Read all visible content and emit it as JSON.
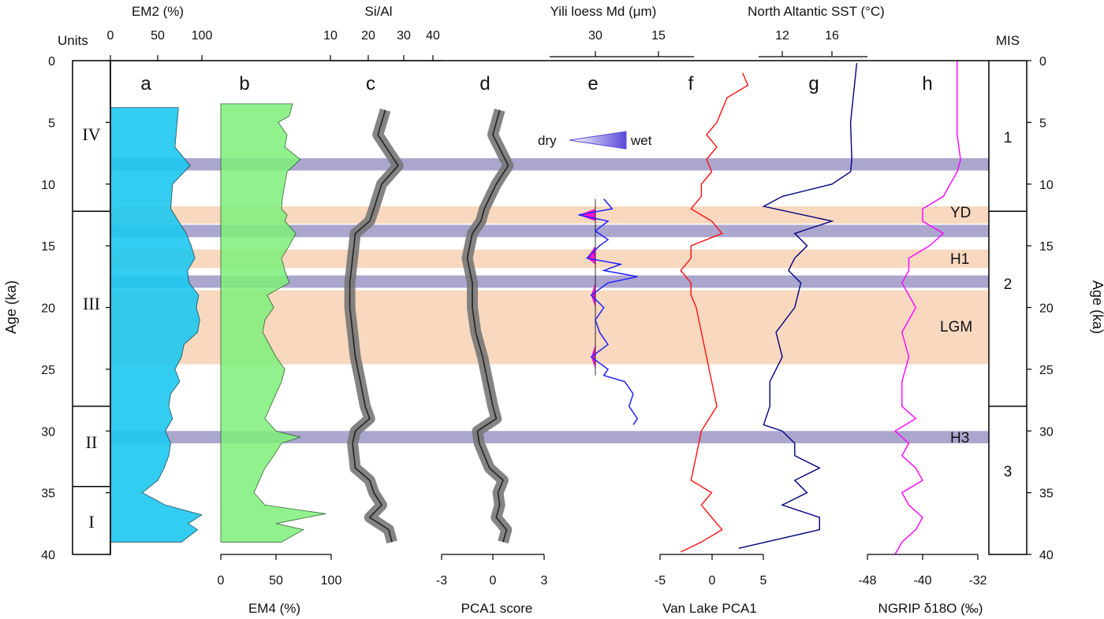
{
  "chart_data": {
    "type": "line",
    "title": "",
    "age_axis": {
      "label": "Age (ka)",
      "range": [
        0,
        40
      ],
      "ticks": [
        0,
        5,
        10,
        15,
        20,
        25,
        30,
        35,
        40
      ],
      "direction": "downward"
    },
    "columns": {
      "units": {
        "header": "Units",
        "items": [
          {
            "label": "IV",
            "range": [
              0,
              12.2
            ]
          },
          {
            "label": "III",
            "range": [
              12.2,
              28
            ]
          },
          {
            "label": "II",
            "range": [
              28,
              34.5
            ]
          },
          {
            "label": "I",
            "range": [
              34.5,
              40
            ]
          }
        ]
      },
      "mis": {
        "header": "MIS",
        "items": [
          {
            "label": "1",
            "range": [
              0,
              12.2
            ]
          },
          {
            "label": "2",
            "range": [
              12.2,
              28
            ]
          },
          {
            "label": "3",
            "range": [
              28,
              40
            ]
          }
        ]
      }
    },
    "bands": {
      "cold": [
        {
          "range": [
            11.8,
            13.2
          ],
          "label": "YD"
        },
        {
          "range": [
            15.3,
            16.8
          ],
          "label": "H1"
        },
        {
          "range": [
            18.6,
            24.6
          ],
          "label": "LGM"
        }
      ],
      "wet": [
        {
          "range": [
            7.9,
            8.9
          ],
          "label": ""
        },
        {
          "range": [
            13.3,
            14.3
          ],
          "label": ""
        },
        {
          "range": [
            17.4,
            18.4
          ],
          "label": ""
        },
        {
          "range": [
            30,
            31
          ],
          "label": "H3"
        }
      ]
    },
    "legend": {
      "dry": "dry",
      "wet": "wet"
    },
    "panels": [
      {
        "id": "a",
        "label": "a",
        "axis_label": "EM2 (%)",
        "axis_position": "top",
        "scale": "log",
        "ticks": [
          "0",
          "50",
          "100"
        ],
        "color": "#1ec8f0",
        "points": [
          [
            3.8,
            30
          ],
          [
            5,
            28
          ],
          [
            7,
            25
          ],
          [
            8.5,
            55
          ],
          [
            10,
            22
          ],
          [
            12,
            20
          ],
          [
            13,
            30
          ],
          [
            14,
            45
          ],
          [
            15,
            58
          ],
          [
            16,
            70
          ],
          [
            17,
            48
          ],
          [
            18,
            52
          ],
          [
            19,
            85
          ],
          [
            20,
            75
          ],
          [
            21,
            90
          ],
          [
            22,
            80
          ],
          [
            23,
            40
          ],
          [
            24,
            35
          ],
          [
            25,
            25
          ],
          [
            26,
            32
          ],
          [
            27,
            20
          ],
          [
            28,
            18
          ],
          [
            29,
            22
          ],
          [
            30,
            15
          ],
          [
            31,
            20
          ],
          [
            32,
            18
          ],
          [
            33,
            14
          ],
          [
            34,
            10
          ],
          [
            35,
            4
          ],
          [
            36,
            15
          ],
          [
            36.8,
            100
          ],
          [
            37.5,
            50
          ],
          [
            38,
            80
          ],
          [
            39,
            35
          ]
        ]
      },
      {
        "id": "b",
        "label": "b",
        "axis_label": "EM4 (%)",
        "axis_position": "bottom",
        "scale": "linear",
        "ticks": [
          "0",
          "50",
          "100"
        ],
        "range": [
          0,
          100
        ],
        "color": "#7ef07a",
        "points": [
          [
            3.5,
            65
          ],
          [
            4.5,
            62
          ],
          [
            5,
            52
          ],
          [
            6,
            60
          ],
          [
            7,
            58
          ],
          [
            8,
            72
          ],
          [
            9,
            60
          ],
          [
            10,
            58
          ],
          [
            11,
            56
          ],
          [
            12,
            55
          ],
          [
            12.5,
            60
          ],
          [
            13,
            58
          ],
          [
            14,
            68
          ],
          [
            15,
            62
          ],
          [
            16,
            55
          ],
          [
            17,
            58
          ],
          [
            18,
            62
          ],
          [
            19,
            42
          ],
          [
            20,
            48
          ],
          [
            21,
            40
          ],
          [
            22,
            38
          ],
          [
            23,
            44
          ],
          [
            24,
            50
          ],
          [
            25,
            58
          ],
          [
            26,
            55
          ],
          [
            27,
            50
          ],
          [
            28,
            45
          ],
          [
            29,
            40
          ],
          [
            30,
            50
          ],
          [
            30.5,
            72
          ],
          [
            31,
            55
          ],
          [
            32,
            48
          ],
          [
            33,
            40
          ],
          [
            34,
            35
          ],
          [
            35,
            30
          ],
          [
            36,
            40
          ],
          [
            36.7,
            95
          ],
          [
            37.5,
            50
          ],
          [
            38,
            75
          ],
          [
            39,
            55
          ]
        ]
      },
      {
        "id": "c",
        "label": "c",
        "axis_label": "Si/Al",
        "axis_position": "top",
        "scale": "log",
        "ticks": [
          "10",
          "20",
          "30",
          "40"
        ],
        "color": "#222222",
        "band_color": "#777777",
        "points": [
          [
            4,
            21
          ],
          [
            6,
            19
          ],
          [
            8.5,
            25
          ],
          [
            10,
            20
          ],
          [
            12,
            18
          ],
          [
            13,
            17
          ],
          [
            14,
            14
          ],
          [
            16,
            13.5
          ],
          [
            18,
            13
          ],
          [
            20,
            13
          ],
          [
            22,
            13.5
          ],
          [
            24,
            14
          ],
          [
            26,
            15
          ],
          [
            28,
            16
          ],
          [
            29,
            17
          ],
          [
            30,
            14
          ],
          [
            31,
            13.5
          ],
          [
            33,
            14
          ],
          [
            34,
            17
          ],
          [
            35,
            18
          ],
          [
            36,
            20
          ],
          [
            37,
            17
          ],
          [
            38,
            22
          ],
          [
            39,
            23
          ]
        ]
      },
      {
        "id": "d",
        "label": "d",
        "axis_label": "PCA1 score",
        "axis_position": "bottom",
        "scale": "linear",
        "ticks": [
          "-3",
          "0",
          "3"
        ],
        "range": [
          -3,
          3
        ],
        "color": "#222222",
        "band_color": "#777777",
        "points": [
          [
            4,
            0.4
          ],
          [
            6,
            0
          ],
          [
            8.5,
            0.9
          ],
          [
            10,
            0.2
          ],
          [
            12,
            -0.5
          ],
          [
            13,
            -0.7
          ],
          [
            14,
            -1.2
          ],
          [
            16,
            -1.5
          ],
          [
            18,
            -1.2
          ],
          [
            20,
            -1.2
          ],
          [
            22,
            -1.0
          ],
          [
            24,
            -0.6
          ],
          [
            26,
            -0.3
          ],
          [
            28,
            0
          ],
          [
            29,
            0.2
          ],
          [
            30,
            -0.9
          ],
          [
            31,
            -0.8
          ],
          [
            33,
            -0.2
          ],
          [
            34,
            0.6
          ],
          [
            35,
            0.3
          ],
          [
            36,
            0.4
          ],
          [
            37,
            0.2
          ],
          [
            38,
            0.8
          ],
          [
            39,
            0.6
          ]
        ]
      },
      {
        "id": "e",
        "label": "e",
        "axis_label": "Yili loess Md (μm)",
        "axis_position": "top",
        "scale": "linear",
        "ticks": [
          "30",
          "15"
        ],
        "range": [
          45,
          10
        ],
        "color": "#2020ff",
        "fill_color": "#ff00cc",
        "points": [
          [
            11.2,
            28
          ],
          [
            12,
            26
          ],
          [
            12.5,
            34
          ],
          [
            13,
            27
          ],
          [
            13.8,
            30
          ],
          [
            14.5,
            27
          ],
          [
            15,
            29
          ],
          [
            16,
            32
          ],
          [
            16.5,
            24
          ],
          [
            17,
            28
          ],
          [
            17.5,
            20
          ],
          [
            18,
            27
          ],
          [
            19,
            31
          ],
          [
            20,
            28
          ],
          [
            21,
            30
          ],
          [
            22,
            29
          ],
          [
            23,
            27
          ],
          [
            24,
            31
          ],
          [
            25,
            27
          ],
          [
            25.5,
            28
          ],
          [
            26,
            23
          ],
          [
            27,
            21
          ],
          [
            28,
            22
          ],
          [
            29,
            20
          ],
          [
            29.5,
            21
          ]
        ]
      },
      {
        "id": "f",
        "label": "f",
        "axis_label": "Van Lake PCA1",
        "axis_position": "bottom",
        "scale": "linear",
        "ticks": [
          "-5",
          "0",
          "5"
        ],
        "range": [
          -5,
          5
        ],
        "color": "#ff1010",
        "points": [
          [
            1,
            3
          ],
          [
            2,
            3.5
          ],
          [
            3,
            1.5
          ],
          [
            4,
            1
          ],
          [
            5,
            0.5
          ],
          [
            6,
            -0.5
          ],
          [
            7,
            0.5
          ],
          [
            8,
            -0.5
          ],
          [
            9,
            0
          ],
          [
            10,
            -1
          ],
          [
            11,
            -1
          ],
          [
            12,
            -2
          ],
          [
            13,
            0
          ],
          [
            14,
            1
          ],
          [
            15,
            -2
          ],
          [
            16,
            -2
          ],
          [
            17,
            -3
          ],
          [
            18,
            -2
          ],
          [
            19,
            -2
          ],
          [
            20,
            -1.5
          ],
          [
            22,
            -1
          ],
          [
            24,
            -0.5
          ],
          [
            26,
            0
          ],
          [
            28,
            0.5
          ],
          [
            30,
            -1
          ],
          [
            32,
            -1.5
          ],
          [
            34,
            -2
          ],
          [
            35,
            0
          ],
          [
            36,
            -1
          ],
          [
            37,
            0
          ],
          [
            38,
            1
          ],
          [
            39,
            -1
          ],
          [
            39.8,
            -3
          ]
        ]
      },
      {
        "id": "g",
        "label": "g",
        "axis_label": "North Altantic SST (°C)",
        "axis_position": "top",
        "scale": "linear",
        "ticks": [
          "12",
          "16"
        ],
        "range": [
          8,
          20
        ],
        "color": "#000080",
        "points": [
          [
            0.2,
            18
          ],
          [
            5,
            17.5
          ],
          [
            8,
            17.6
          ],
          [
            9,
            17.5
          ],
          [
            10,
            16
          ],
          [
            11,
            12
          ],
          [
            11.8,
            10.5
          ],
          [
            13,
            16
          ],
          [
            14,
            13
          ],
          [
            15,
            14
          ],
          [
            16,
            13
          ],
          [
            17,
            12.5
          ],
          [
            18,
            13.5
          ],
          [
            20,
            13
          ],
          [
            22,
            11.5
          ],
          [
            24,
            12
          ],
          [
            26,
            11
          ],
          [
            28,
            11
          ],
          [
            29.5,
            10.5
          ],
          [
            30,
            12
          ],
          [
            31,
            13
          ],
          [
            32,
            13
          ],
          [
            33,
            15
          ],
          [
            34,
            13
          ],
          [
            35,
            14
          ],
          [
            36,
            12
          ],
          [
            37,
            15
          ],
          [
            38,
            15
          ],
          [
            39.5,
            8.5
          ]
        ]
      },
      {
        "id": "h",
        "label": "h",
        "axis_label": "NGRIP δ18O (‰)",
        "axis_position": "bottom",
        "scale": "linear",
        "ticks": [
          "-48",
          "-40",
          "-32"
        ],
        "range": [
          -48,
          -32
        ],
        "color": "#ff00ff",
        "points": [
          [
            0,
            -35
          ],
          [
            2,
            -35
          ],
          [
            4,
            -35
          ],
          [
            6,
            -35
          ],
          [
            8,
            -34.5
          ],
          [
            9,
            -35
          ],
          [
            10,
            -36
          ],
          [
            11,
            -37
          ],
          [
            12,
            -40
          ],
          [
            13,
            -40
          ],
          [
            14,
            -37
          ],
          [
            15,
            -39
          ],
          [
            16,
            -42
          ],
          [
            17,
            -42
          ],
          [
            18,
            -43
          ],
          [
            19,
            -42
          ],
          [
            20,
            -41
          ],
          [
            22,
            -43
          ],
          [
            24,
            -42
          ],
          [
            26,
            -43
          ],
          [
            28,
            -43
          ],
          [
            29,
            -41
          ],
          [
            30,
            -44
          ],
          [
            31,
            -42
          ],
          [
            32,
            -43
          ],
          [
            33,
            -41
          ],
          [
            34,
            -40
          ],
          [
            35,
            -43
          ],
          [
            36,
            -42
          ],
          [
            37,
            -40
          ],
          [
            38,
            -41
          ],
          [
            39,
            -43
          ],
          [
            40,
            -44
          ]
        ]
      }
    ],
    "right_annotations": [
      {
        "label": "YD",
        "age": 12.4
      },
      {
        "label": "H1",
        "age": 16.1
      },
      {
        "label": "LGM",
        "age": 21.6
      },
      {
        "label": "H3",
        "age": 30.4
      }
    ]
  }
}
